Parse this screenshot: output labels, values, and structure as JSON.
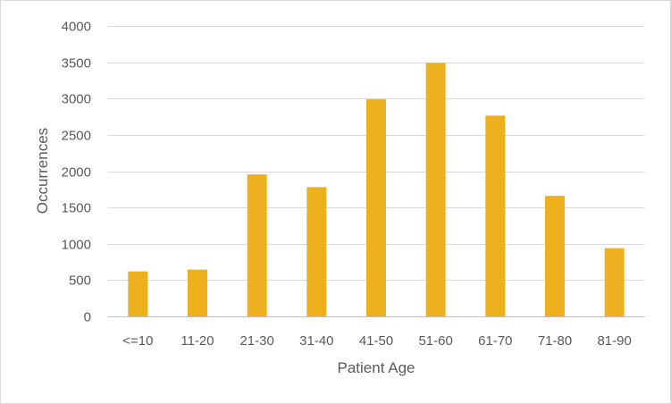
{
  "chart_data": {
    "type": "bar",
    "categories": [
      "<=10",
      "11-20",
      "21-30",
      "31-40",
      "41-50",
      "51-60",
      "61-70",
      "71-80",
      "81-90"
    ],
    "values": [
      620,
      645,
      1955,
      1780,
      2990,
      3490,
      2765,
      1660,
      940
    ],
    "xlabel": "Patient Age",
    "ylabel": "Occurrences",
    "ylim": [
      0,
      4000
    ],
    "yticks": [
      0,
      500,
      1000,
      1500,
      2000,
      2500,
      3000,
      3500,
      4000
    ],
    "bar_color": "#EDB120",
    "grid": true,
    "legend": "none"
  }
}
